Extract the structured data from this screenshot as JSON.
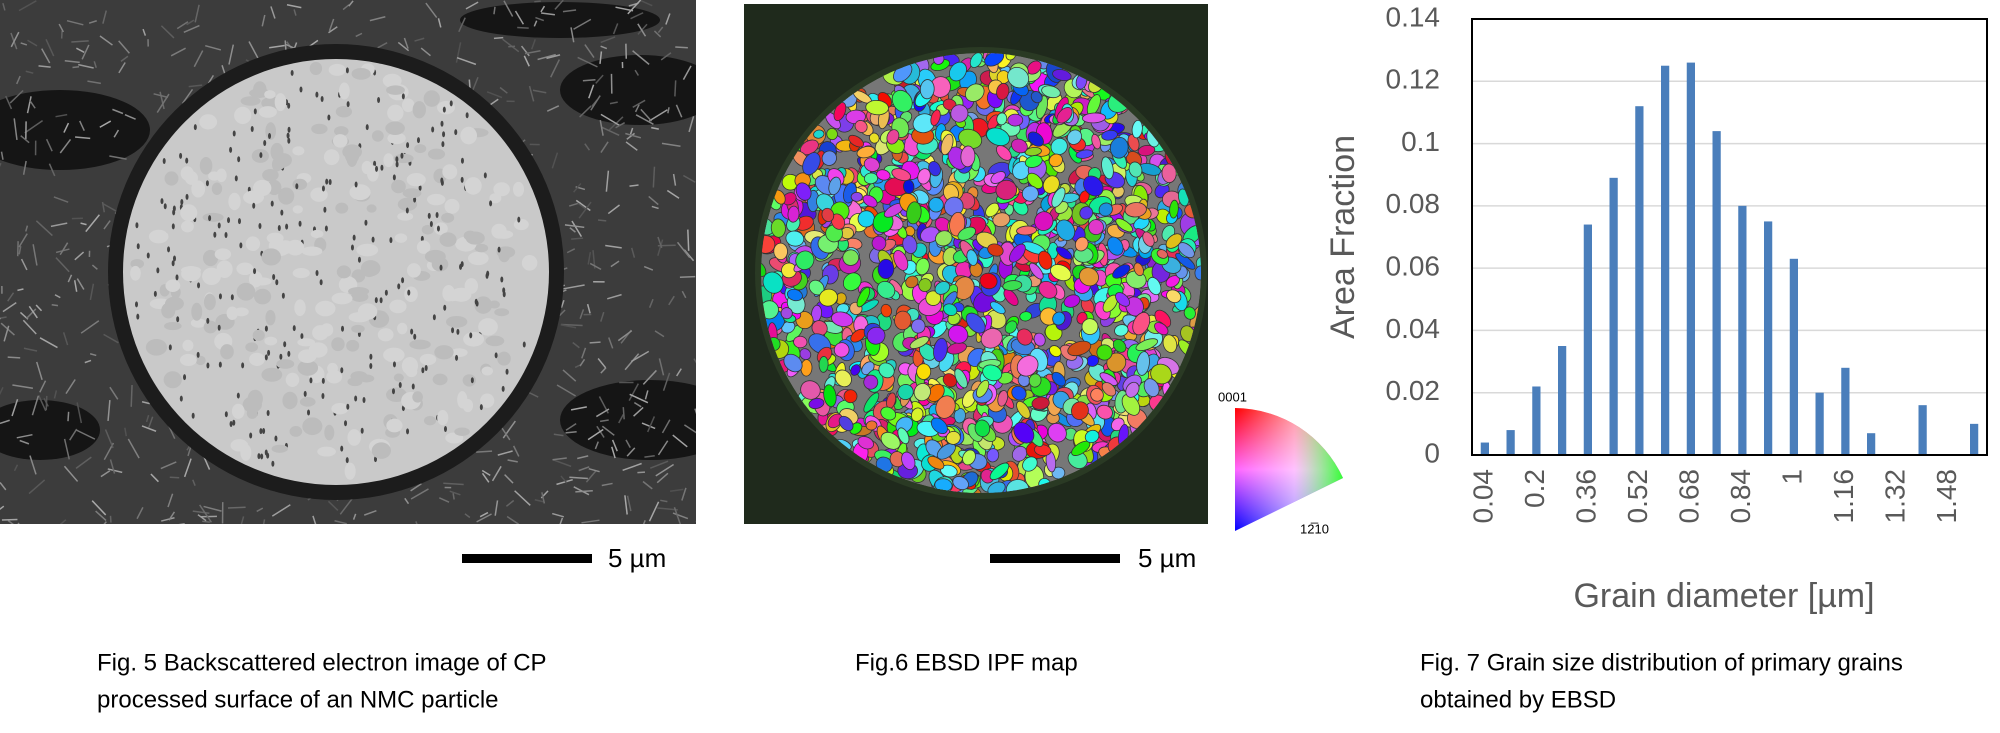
{
  "figures": [
    {
      "caption": [
        "Fig. 5  Backscattered electron image of CP",
        "processed surface of an NMC particle"
      ],
      "scale_label": "5 µm"
    },
    {
      "caption": [
        "Fig.6  EBSD IPF map"
      ],
      "scale_label": "5 µm",
      "legend_labels": [
        "0001",
        "12̅10"
      ]
    },
    {
      "caption": [
        "Fig. 7 Grain size distribution of primary grains",
        "obtained by EBSD"
      ]
    }
  ],
  "chart_data": {
    "type": "bar",
    "x_label": "Grain diameter [µm]",
    "y_label": "Area Fraction",
    "categories": [
      "0.04",
      null,
      "0.2",
      null,
      "0.36",
      null,
      "0.52",
      null,
      "0.68",
      null,
      "0.84",
      null,
      "1",
      null,
      "1.16",
      null,
      "1.32",
      null,
      "1.48",
      null
    ],
    "values": [
      0.004,
      0.008,
      0.022,
      0.035,
      0.074,
      0.089,
      0.112,
      0.125,
      0.126,
      0.104,
      0.08,
      0.075,
      0.063,
      0.02,
      0.028,
      0.007,
      0,
      0.016,
      0,
      0.01
    ],
    "color": "#4a7ebb",
    "ylim": [
      0,
      0.14
    ],
    "yticks": [
      0,
      0.02,
      0.04,
      0.06,
      0.08,
      0.1,
      0.12,
      0.14
    ],
    "grid": true
  }
}
